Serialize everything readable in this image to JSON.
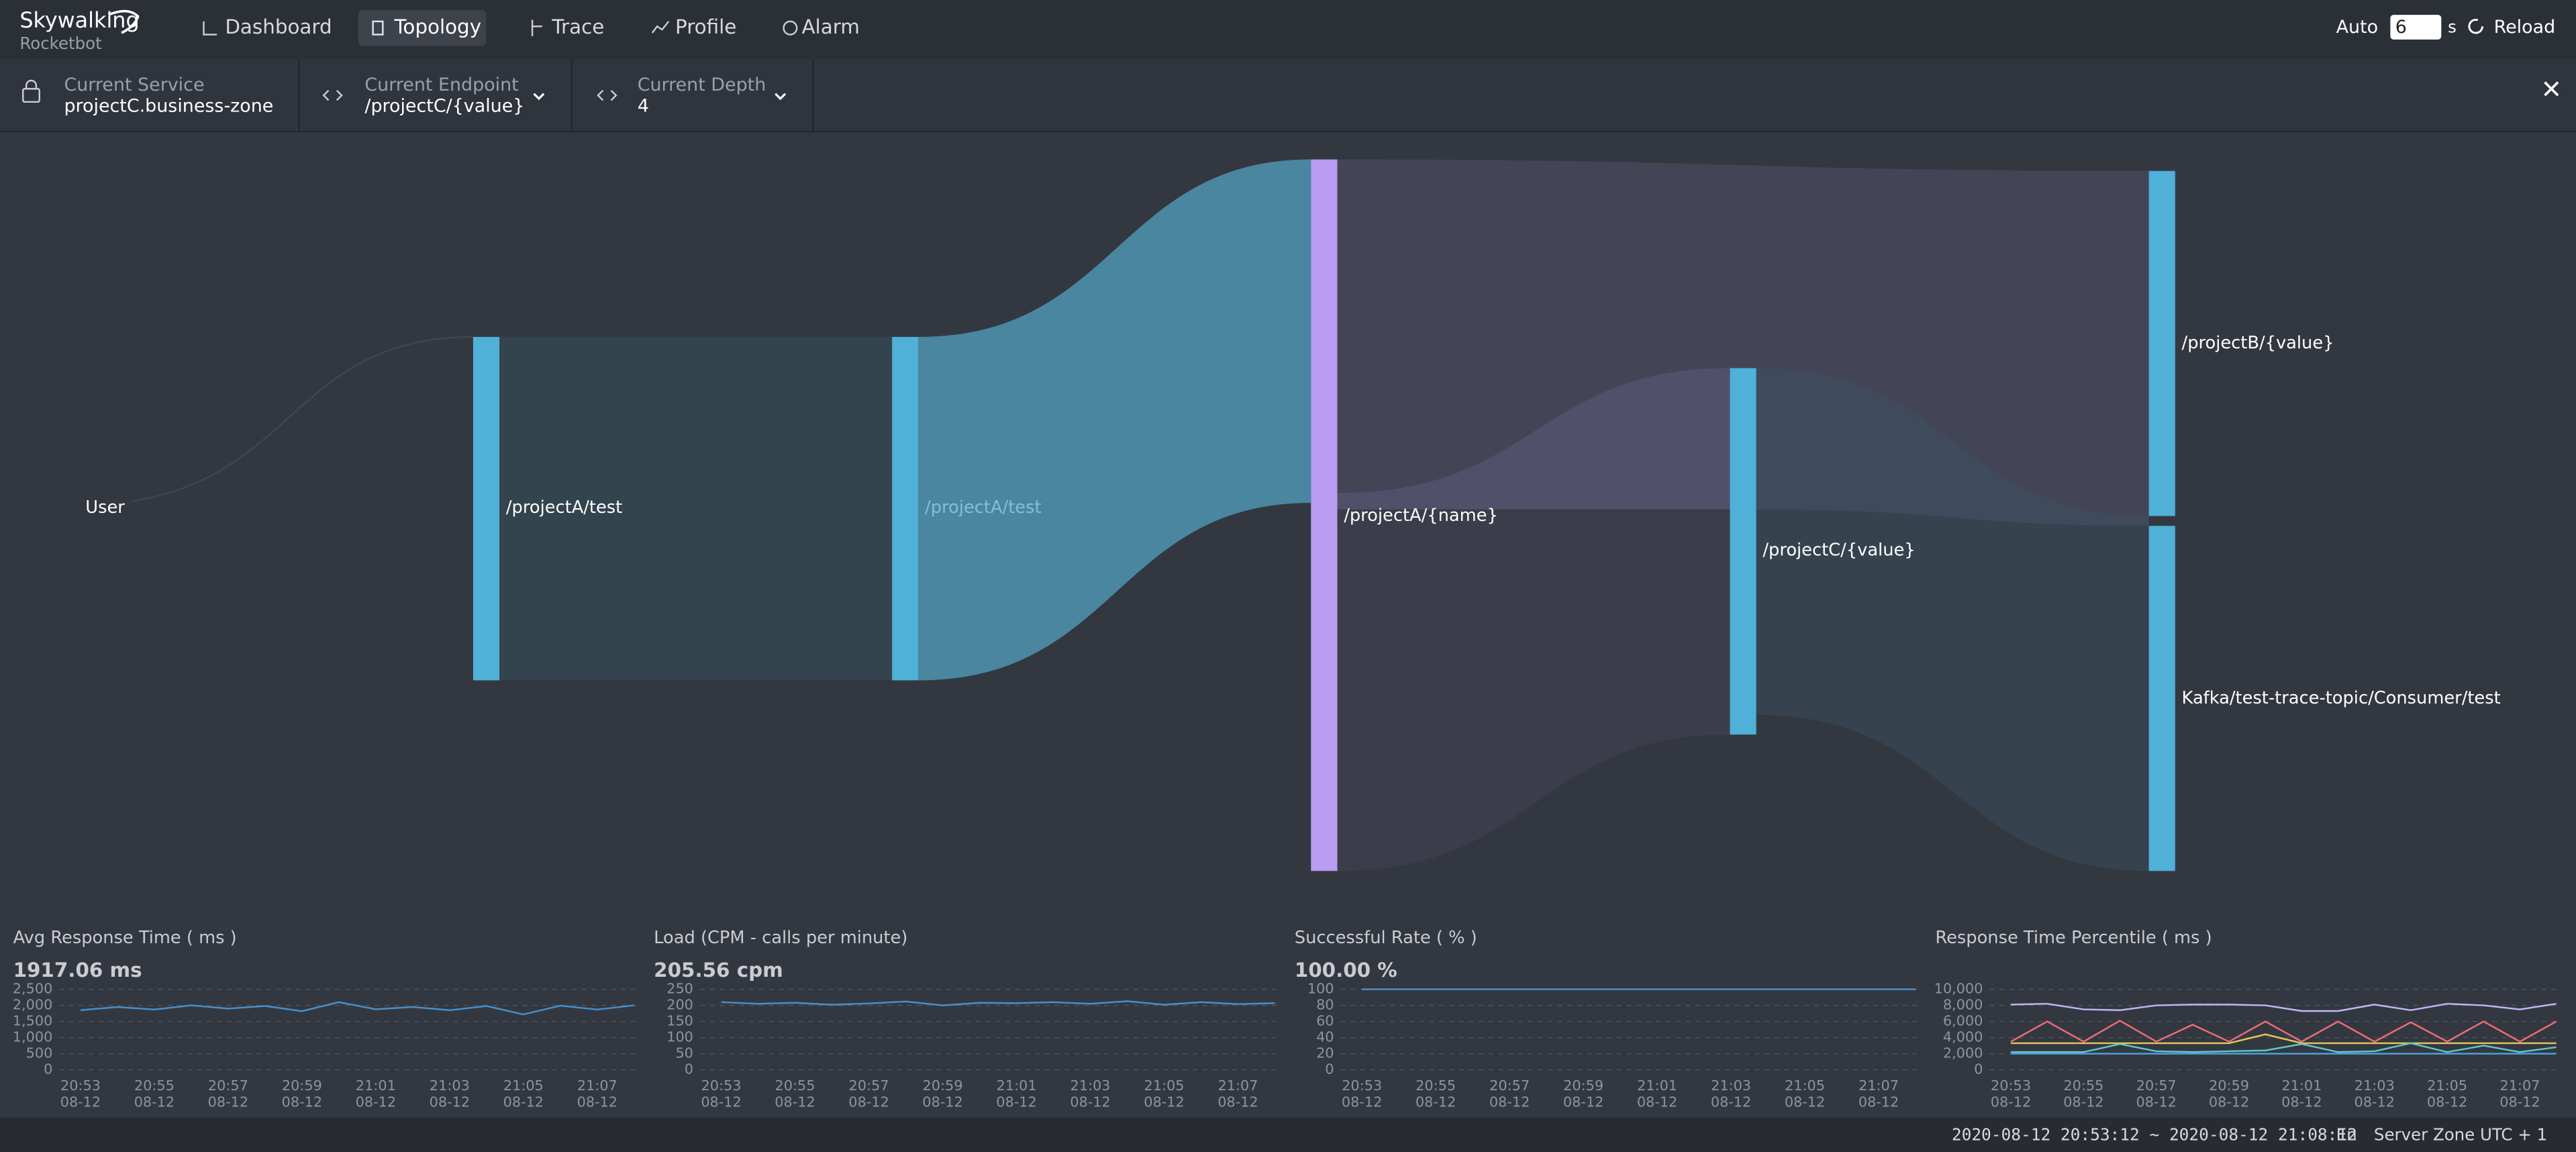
{
  "header": {
    "logo_title": "Skywalking",
    "logo_subtitle": "Rocketbot",
    "nav": [
      "Dashboard",
      "Topology",
      "Trace",
      "Profile",
      "Alarm"
    ],
    "auto_label": "Auto",
    "auto_interval": "6",
    "auto_unit": "s",
    "reload": "Reload"
  },
  "toolbar": {
    "service_label": "Current Service",
    "service_value": "projectC.business-zone",
    "endpoint_label": "Current Endpoint",
    "endpoint_value": "/projectC/{value}",
    "depth_label": "Current Depth",
    "depth_value": "4"
  },
  "topology": {
    "nodes": [
      "User",
      "/projectA/test",
      "/projectA/test",
      "/projectA/{name}",
      "/projectC/{value}",
      "/projectB/{value}",
      "Kafka/test-trace-topic/Consumer/test"
    ]
  },
  "chart_data": [
    {
      "type": "line",
      "title": "Avg Response Time ( ms )",
      "summary": "1917.06 ms",
      "categories": [
        "20:53",
        null,
        "20:55",
        null,
        "20:57",
        null,
        "20:59",
        null,
        "21:01",
        null,
        "21:03",
        null,
        "21:05",
        null,
        "21:07",
        null
      ],
      "category_dates": [
        "08-12",
        null,
        "08-12",
        null,
        "08-12",
        null,
        "08-12",
        null,
        "08-12",
        null,
        "08-12",
        null,
        "08-12",
        null,
        "08-12",
        null
      ],
      "ylim": [
        0,
        2500
      ],
      "yticks": [
        0,
        500,
        {
          "value": 1000,
          "label": "1,000"
        },
        {
          "value": 1500,
          "label": "1,500"
        },
        {
          "value": 2000,
          "label": "2,000"
        },
        {
          "value": 2500,
          "label": "2,500"
        }
      ],
      "grid": true,
      "series": [
        {
          "color": "#4a8fc9",
          "values": [
            1850,
            1950,
            1870,
            2000,
            1900,
            1980,
            1820,
            2100,
            1880,
            1950,
            1850,
            1980,
            1720,
            1990,
            1870,
            2000
          ]
        }
      ]
    },
    {
      "type": "line",
      "title": "Load (CPM - calls per minute)",
      "summary": "205.56 cpm",
      "categories": [
        "20:53",
        null,
        "20:55",
        null,
        "20:57",
        null,
        "20:59",
        null,
        "21:01",
        null,
        "21:03",
        null,
        "21:05",
        null,
        "21:07",
        null
      ],
      "category_dates": [
        "08-12",
        null,
        "08-12",
        null,
        "08-12",
        null,
        "08-12",
        null,
        "08-12",
        null,
        "08-12",
        null,
        "08-12",
        null,
        "08-12",
        null
      ],
      "ylim": [
        0,
        250
      ],
      "yticks": [
        0,
        50,
        100,
        150,
        200,
        250
      ],
      "grid": true,
      "series": [
        {
          "color": "#4a8fc9",
          "values": [
            210,
            205,
            208,
            202,
            206,
            212,
            200,
            208,
            207,
            210,
            205,
            213,
            202,
            210,
            204,
            207
          ]
        }
      ]
    },
    {
      "type": "line",
      "title": "Successful Rate ( % )",
      "summary": "100.00 %",
      "categories": [
        "20:53",
        null,
        "20:55",
        null,
        "20:57",
        null,
        "20:59",
        null,
        "21:01",
        null,
        "21:03",
        null,
        "21:05",
        null,
        "21:07",
        null
      ],
      "category_dates": [
        "08-12",
        null,
        "08-12",
        null,
        "08-12",
        null,
        "08-12",
        null,
        "08-12",
        null,
        "08-12",
        null,
        "08-12",
        null,
        "08-12",
        null
      ],
      "ylim": [
        0,
        100
      ],
      "yticks": [
        0,
        20,
        40,
        60,
        80,
        100
      ],
      "grid": true,
      "series": [
        {
          "color": "#4a8fc9",
          "values": [
            100,
            100,
            100,
            100,
            100,
            100,
            100,
            100,
            100,
            100,
            100,
            100,
            100,
            100,
            100,
            100
          ]
        }
      ]
    },
    {
      "type": "line",
      "title": "Response Time Percentile ( ms )",
      "categories": [
        "20:53",
        null,
        "20:55",
        null,
        "20:57",
        null,
        "20:59",
        null,
        "21:01",
        null,
        "21:03",
        null,
        "21:05",
        null,
        "21:07",
        null
      ],
      "category_dates": [
        "08-12",
        null,
        "08-12",
        null,
        "08-12",
        null,
        "08-12",
        null,
        "08-12",
        null,
        "08-12",
        null,
        "08-12",
        null,
        "08-12",
        null
      ],
      "ylim": [
        0,
        10000
      ],
      "yticks": [
        0,
        {
          "value": 2000,
          "label": "2,000"
        },
        {
          "value": 4000,
          "label": "4,000"
        },
        {
          "value": 6000,
          "label": "6,000"
        },
        {
          "value": 8000,
          "label": "8,000"
        },
        {
          "value": 10000,
          "label": "10,000"
        }
      ],
      "grid": true,
      "series": [
        {
          "color": "#c3b5f5",
          "values": [
            8100,
            8200,
            7500,
            7400,
            8000,
            8100,
            8100,
            8000,
            7300,
            7300,
            8100,
            7400,
            8200,
            8000,
            7500,
            8200
          ]
        },
        {
          "color": "#f06b7b",
          "values": [
            3500,
            6000,
            3500,
            6100,
            3500,
            5600,
            3500,
            6000,
            3500,
            6000,
            3500,
            5900,
            3500,
            6000,
            3500,
            6000
          ]
        },
        {
          "color": "#e6c75a",
          "values": [
            3300,
            3300,
            3300,
            3300,
            3300,
            3300,
            3300,
            4400,
            3300,
            3300,
            3300,
            3300,
            3300,
            3300,
            3300,
            3300
          ]
        },
        {
          "color": "#5fc9c6",
          "values": [
            2200,
            2200,
            2200,
            3200,
            2300,
            2200,
            2300,
            2400,
            3200,
            2200,
            2300,
            3300,
            2200,
            3000,
            2200,
            2800
          ]
        },
        {
          "color": "#4ea3e2",
          "values": [
            2000,
            2000,
            2000,
            2000,
            2000,
            2000,
            2000,
            2000,
            2000,
            2000,
            2000,
            2000,
            2000,
            2000,
            2000,
            2000
          ]
        }
      ]
    }
  ],
  "footer": {
    "time_range": "2020-08-12 20:53:12 ~ 2020-08-12 21:08:12",
    "language": "En",
    "server_zone": "Server Zone UTC + 1"
  }
}
